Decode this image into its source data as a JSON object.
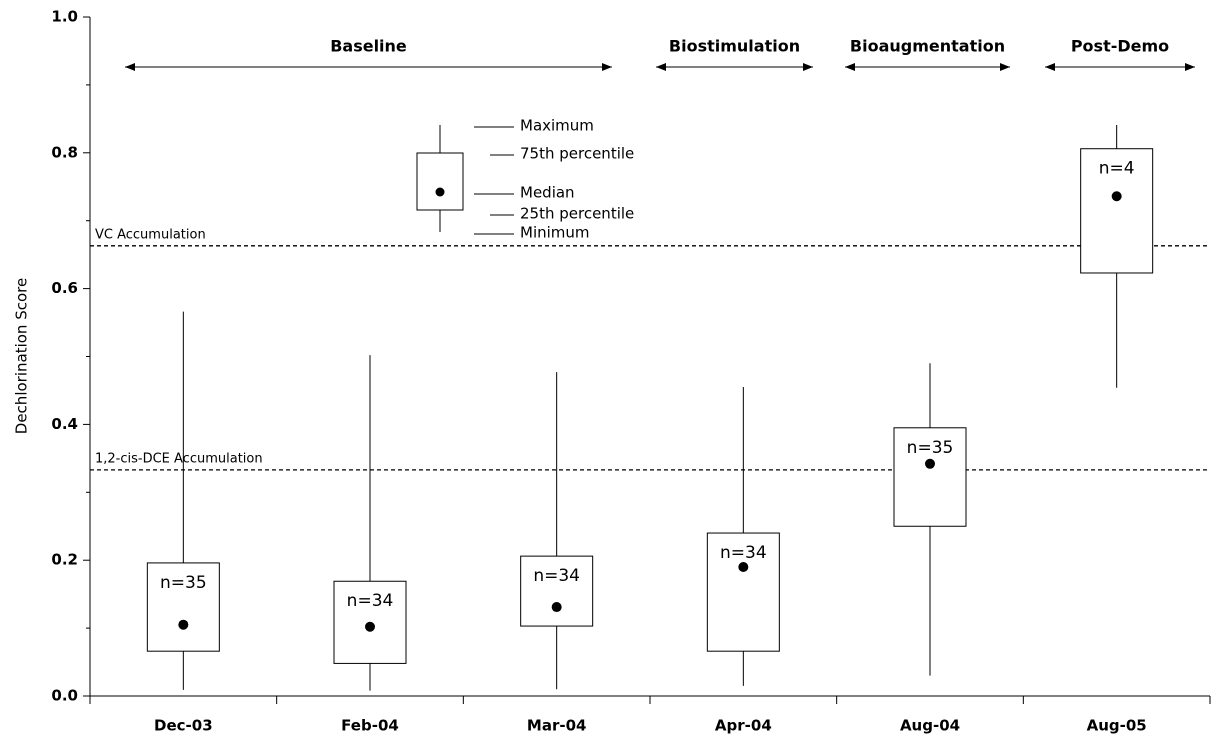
{
  "chart_data": {
    "type": "box",
    "y_label": "Dechlorination Score",
    "categories": [
      "Dec-03",
      "Feb-04",
      "Mar-04",
      "Apr-04",
      "Aug-04",
      "Aug-05"
    ],
    "min": [
      0.009,
      0.008,
      0.01,
      0.015,
      0.03,
      0.454
    ],
    "q1": [
      0.066,
      0.048,
      0.103,
      0.066,
      0.25,
      0.623
    ],
    "median": [
      0.105,
      0.102,
      0.131,
      0.19,
      0.342,
      0.736
    ],
    "q3": [
      0.196,
      0.169,
      0.206,
      0.24,
      0.395,
      0.806
    ],
    "max": [
      0.566,
      0.502,
      0.477,
      0.455,
      0.49,
      0.841
    ],
    "n_labels": [
      "n=35",
      "n=34",
      "n=34",
      "n=34",
      "n=35",
      "n=4"
    ],
    "ylim": [
      0,
      1
    ],
    "yticks": [
      {
        "value": 0,
        "label": "0.0"
      },
      {
        "value": 0.2,
        "label": "0.2"
      },
      {
        "value": 0.4,
        "label": "0.4"
      },
      {
        "value": 0.6,
        "label": "0.6"
      },
      {
        "value": 0.8,
        "label": "0.8"
      },
      {
        "value": 1,
        "label": "1.0"
      }
    ],
    "reference_lines": [
      {
        "value": 0.663,
        "label": "VC Accumulation"
      },
      {
        "value": 0.333,
        "label": "1,2-cis-DCE Accumulation"
      }
    ],
    "phases": [
      "Baseline",
      "Biostimulation",
      "Bioaugmentation",
      "Post-Demo"
    ],
    "legend_labels": [
      "Maximum",
      "75th percentile",
      "Median",
      "25th percentile",
      "Minimum"
    ]
  }
}
